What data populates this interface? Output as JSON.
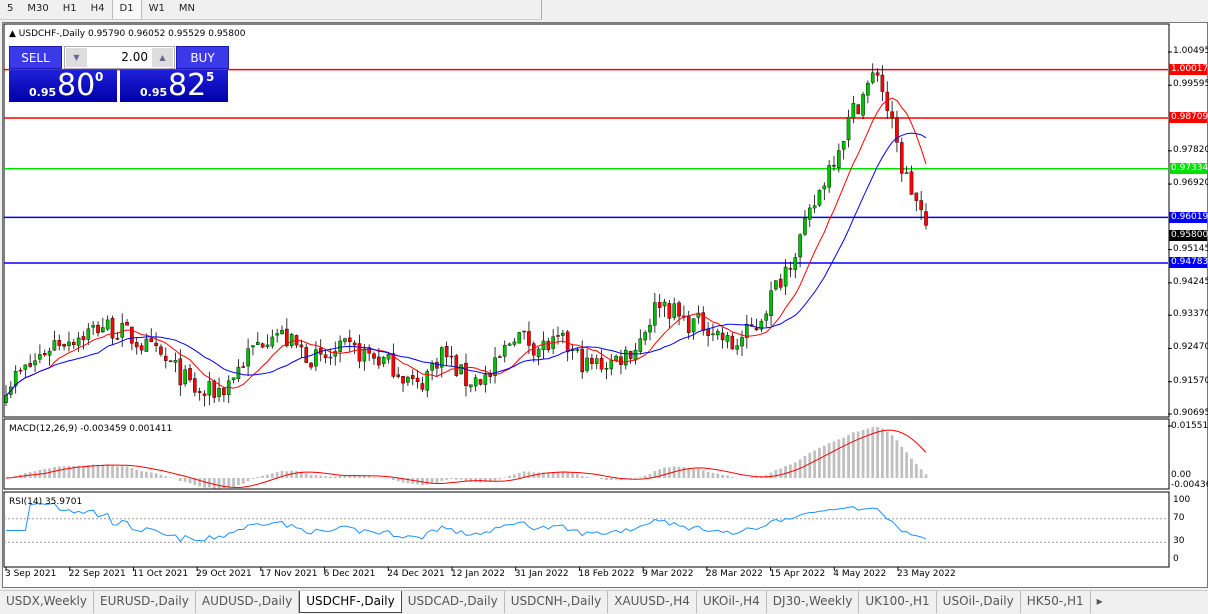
{
  "timeframes": {
    "items": [
      "5",
      "M30",
      "H1",
      "H4",
      "D1",
      "W1",
      "MN"
    ],
    "selected": "D1"
  },
  "chart": {
    "symbol_info": "USDCHF-,Daily  0.95790 0.96052 0.95529 0.95800",
    "trade_panel": {
      "sell_label": "SELL",
      "buy_label": "BUY",
      "lot": "2.00",
      "sell_price": {
        "prefix": "0.95",
        "big": "80",
        "sup": "0"
      },
      "buy_price": {
        "prefix": "0.95",
        "big": "82",
        "sup": "5"
      }
    },
    "price_axis": [
      "1.00495",
      "0.99595",
      "0.97820",
      "0.96920",
      "0.95145",
      "0.94245",
      "0.93370",
      "0.92470",
      "0.91570",
      "0.90695"
    ],
    "price_range": [
      0.90695,
      1.00495
    ],
    "horizontal_lines": [
      {
        "price": "1.00017",
        "color": "#ff0000"
      },
      {
        "price": "0.98709",
        "color": "#ff0000"
      },
      {
        "price": "0.97334",
        "color": "#00e000"
      },
      {
        "price": "0.96019",
        "color": "#0000ff"
      },
      {
        "price": "0.94783",
        "color": "#0000ff"
      }
    ],
    "current_price": {
      "price": "0.95800",
      "color": "#000000"
    },
    "colors": {
      "bull": "#00c000",
      "bear": "#ff0000",
      "ma_fast": "#ff0000",
      "ma_slow": "#0000ff",
      "macd_hist": "#c0c0c0",
      "macd_signal": "#ff0000",
      "rsi": "#1e90ff"
    },
    "weekly_closes": [
      0.915,
      0.92,
      0.9265,
      0.928,
      0.931,
      0.9285,
      0.924,
      0.919,
      0.912,
      0.914,
      0.923,
      0.93,
      0.925,
      0.921,
      0.9245,
      0.923,
      0.92,
      0.914,
      0.924,
      0.916,
      0.917,
      0.929,
      0.925,
      0.926,
      0.92,
      0.921,
      0.925,
      0.938,
      0.932,
      0.931,
      0.925,
      0.931,
      0.944,
      0.957,
      0.974,
      0.989,
      1.0,
      0.974,
      0.958
    ],
    "x_axis": [
      "3 Sep 2021",
      "22 Sep 2021",
      "11 Oct 2021",
      "29 Oct 2021",
      "17 Nov 2021",
      "6 Dec 2021",
      "24 Dec 2021",
      "12 Jan 2022",
      "31 Jan 2022",
      "18 Feb 2022",
      "9 Mar 2022",
      "28 Mar 2022",
      "15 Apr 2022",
      "4 May 2022",
      "23 May 2022"
    ]
  },
  "macd": {
    "label": "MACD(12,26,9) -0.003459 0.001411",
    "axis": [
      "0.015516",
      "0.00",
      "-0.00436"
    ]
  },
  "rsi": {
    "label": "RSI(14) 35.9701",
    "axis": [
      "100",
      "70",
      "30",
      "0"
    ],
    "levels": [
      70,
      30
    ]
  },
  "tabs": {
    "items": [
      "USDX,Weekly",
      "EURUSD-,Daily",
      "AUDUSD-,Daily",
      "USDCHF-,Daily",
      "USDCAD-,Daily",
      "USDCNH-,Daily",
      "XAUUSD-,H4",
      "UKOil-,H4",
      "DJ30-,Weekly",
      "UK100-,H1",
      "USOil-,Daily",
      "HK50-,H1"
    ],
    "active": "USDCHF-,Daily"
  }
}
